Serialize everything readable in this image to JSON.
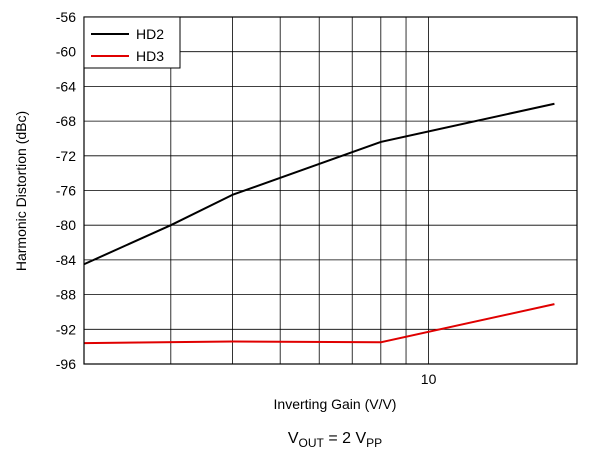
{
  "chart_data": {
    "type": "line",
    "xlabel": "Inverting Gain (V/V)",
    "ylabel": "Harmonic Distortion (dBc)",
    "x_scale": "log",
    "xlim": [
      2,
      20
    ],
    "ylim": [
      -96,
      -56
    ],
    "x_tick_labels": [
      {
        "value": 10,
        "label": "10"
      }
    ],
    "x_minor_ticks": [
      3,
      4,
      5,
      6,
      7,
      8,
      9,
      20
    ],
    "y_ticks": [
      -56,
      -60,
      -64,
      -68,
      -72,
      -76,
      -80,
      -84,
      -88,
      -92,
      -96
    ],
    "y_tick_labels": [
      "-56",
      "-60",
      "-64",
      "-68",
      "-72",
      "-76",
      "-80",
      "-84",
      "-88",
      "-92",
      "-96"
    ],
    "grid": true,
    "legend_position": "top-left",
    "series": [
      {
        "name": "HD2",
        "color": "#000000",
        "x": [
          2,
          3,
          4,
          8,
          18
        ],
        "y": [
          -84.5,
          -80,
          -76.5,
          -70.4,
          -66
        ]
      },
      {
        "name": "HD3",
        "color": "#e00000",
        "x": [
          2,
          4,
          8,
          18
        ],
        "y": [
          -93.6,
          -93.4,
          -93.5,
          -89.1
        ]
      }
    ],
    "caption": {
      "main": "V",
      "sub1": "OUT",
      "mid": " = 2 V",
      "sub2": "PP"
    }
  }
}
